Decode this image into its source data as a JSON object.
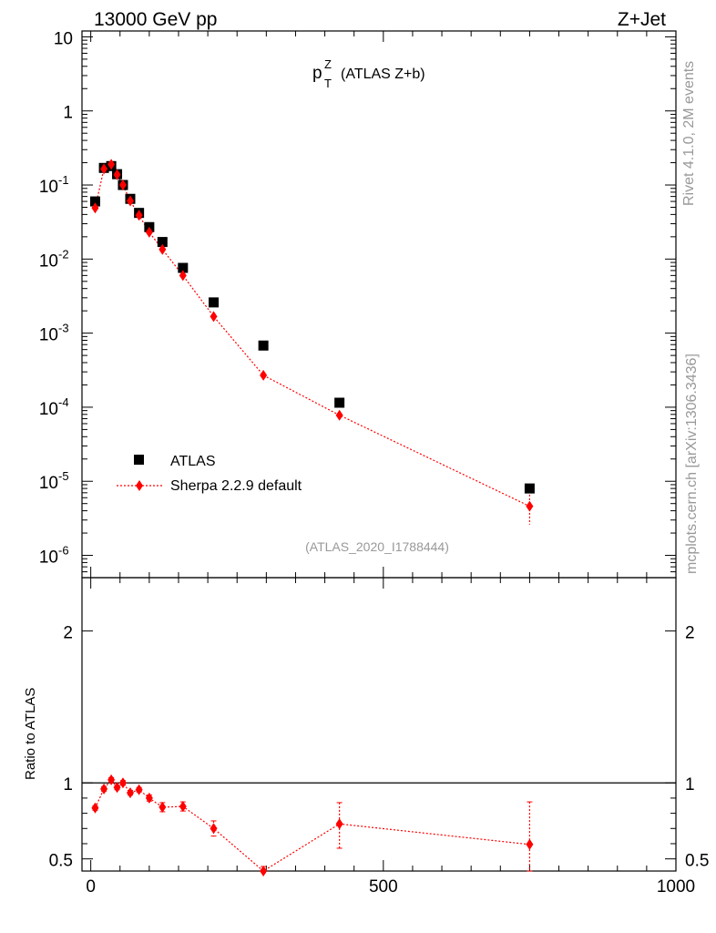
{
  "header": {
    "left": "13000 GeV pp",
    "right": "Z+Jet"
  },
  "side_labels": {
    "version": "Rivet 4.1.0,  2M events",
    "source": "mcplots.cern.ch [arXiv:1306.3436]"
  },
  "colors": {
    "data": "#000000",
    "mc": "#ff0000",
    "analysis_id": "#999999"
  },
  "chart_data": [
    {
      "type": "scatter",
      "panel": "main",
      "title_main": "p",
      "title_sup": "Z",
      "title_sub": "T",
      "title_rest": "(ATLAS Z+b)",
      "analysis_id": "(ATLAS_2020_I1788444)",
      "yscale": "log",
      "ylim": [
        5e-07,
        12
      ],
      "xlim": [
        -15,
        1000
      ],
      "ytick_labels": [
        {
          "base": "10",
          "exp": "-6",
          "value": 1e-06
        },
        {
          "base": "10",
          "exp": "-5",
          "value": 1e-05
        },
        {
          "base": "10",
          "exp": "-4",
          "value": 0.0001
        },
        {
          "base": "10",
          "exp": "-3",
          "value": 0.001
        },
        {
          "base": "10",
          "exp": "-2",
          "value": 0.01
        },
        {
          "base": "10",
          "exp": "-1",
          "value": 0.1
        },
        {
          "base": "1",
          "exp": "",
          "value": 1
        },
        {
          "base": "10",
          "exp": "",
          "value": 10
        }
      ],
      "legend": {
        "position": "bottom-left",
        "data_label": "ATLAS",
        "mc_label": "Sherpa 2.2.9 default"
      },
      "series": [
        {
          "name": "ATLAS",
          "marker": "square",
          "x": [
            7.5,
            22.5,
            35,
            45,
            55,
            67.5,
            82.5,
            100,
            122.5,
            157.5,
            210,
            295,
            425,
            750
          ],
          "y": [
            0.06,
            0.17,
            0.18,
            0.14,
            0.1,
            0.065,
            0.042,
            0.027,
            0.017,
            0.0076,
            0.0026,
            0.00068,
            0.000115,
            8e-06
          ]
        },
        {
          "name": "Sherpa 2.2.9 default",
          "marker": "diamond",
          "x": [
            7.5,
            22.5,
            35,
            45,
            55,
            67.5,
            82.5,
            100,
            122.5,
            157.5,
            210,
            295,
            425,
            750
          ],
          "y": [
            0.049,
            0.165,
            0.19,
            0.138,
            0.1,
            0.061,
            0.039,
            0.023,
            0.0135,
            0.006,
            0.00168,
            0.00027,
            7.8e-05,
            4.6e-06
          ],
          "yerr_low": [
            0.002,
            0.004,
            0.005,
            0.004,
            0.003,
            0.002,
            0.0015,
            0.001,
            0.0008,
            0.0004,
            0.0002,
            2e-05,
            1.2e-05,
            2e-06
          ],
          "yerr_high": [
            0.002,
            0.004,
            0.005,
            0.004,
            0.003,
            0.002,
            0.0015,
            0.001,
            0.0008,
            0.0004,
            0.0002,
            2e-05,
            1.2e-05,
            2e-06
          ]
        }
      ]
    },
    {
      "type": "line",
      "panel": "ratio",
      "ylabel": "Ratio to ATLAS",
      "ylim": [
        0.42,
        2.35
      ],
      "xlim": [
        -15,
        1000
      ],
      "ytick_labels": [
        "0.5",
        "1",
        "2"
      ],
      "xtick_labels": [
        "0",
        "500",
        "1000"
      ],
      "reference_line": 1,
      "series": [
        {
          "name": "Sherpa 2.2.9 default",
          "x": [
            7.5,
            22.5,
            35,
            45,
            55,
            67.5,
            82.5,
            100,
            122.5,
            157.5,
            210,
            295,
            425,
            750
          ],
          "y": [
            0.835,
            0.96,
            1.02,
            0.97,
            1.0,
            0.935,
            0.955,
            0.9,
            0.84,
            0.845,
            0.7,
            0.4,
            0.73,
            0.595
          ],
          "yerr_low": [
            0.015,
            0.015,
            0.015,
            0.015,
            0.015,
            0.015,
            0.015,
            0.02,
            0.03,
            0.03,
            0.05,
            0.04,
            0.16,
            0.2
          ],
          "yerr_high": [
            0.015,
            0.015,
            0.015,
            0.015,
            0.015,
            0.015,
            0.015,
            0.02,
            0.03,
            0.03,
            0.05,
            0.05,
            0.14,
            0.28
          ]
        }
      ]
    }
  ]
}
